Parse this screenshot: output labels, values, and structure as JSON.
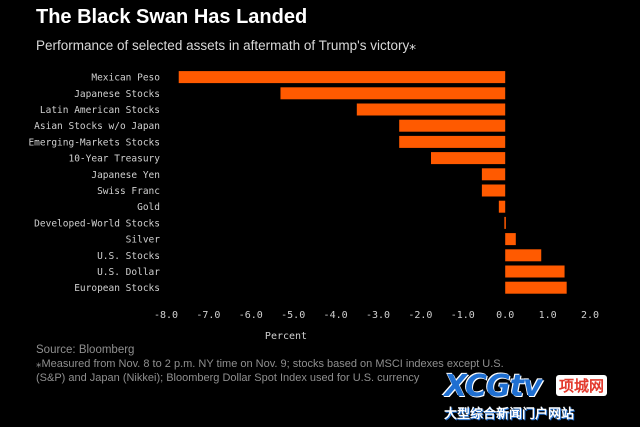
{
  "header": {
    "title": "The Black Swan Has Landed",
    "subtitle": "Performance of selected assets in aftermath of Trump's victory⁎"
  },
  "chart_data": {
    "type": "bar",
    "orientation": "horizontal",
    "xlabel": "Percent",
    "xlim": [
      -8.0,
      2.0
    ],
    "xticks": [
      "-8.0",
      "-7.0",
      "-6.0",
      "-5.0",
      "-4.0",
      "-3.0",
      "-2.0",
      "-1.0",
      "0.0",
      "1.0",
      "2.0"
    ],
    "categories": [
      "Mexican Peso",
      "Japanese Stocks",
      "Latin American Stocks",
      "Asian Stocks w/o Japan",
      "Emerging-Markets Stocks",
      "10-Year Treasury",
      "Japanese Yen",
      "Swiss Franc",
      "Gold",
      "Developed-World Stocks",
      "Silver",
      "U.S. Stocks",
      "U.S. Dollar",
      "European Stocks"
    ],
    "values": [
      -7.7,
      -5.3,
      -3.5,
      -2.5,
      -2.5,
      -1.75,
      -0.55,
      -0.55,
      -0.15,
      -0.02,
      0.25,
      0.85,
      1.4,
      1.45
    ],
    "bar_color": "#ff5a00",
    "grid": false
  },
  "footer": {
    "source": "Source: Bloomberg",
    "footnote": "⁎Measured from Nov. 8 to 2 p.m. NY time on Nov. 9; stocks based on MSCI indexes except U.S. (S&P) and Japan (Nikkei); Bloomberg Dollar Spot Index used for U.S. currency"
  },
  "watermark": {
    "logo": "XCGtv",
    "cn_badge": "项城网",
    "subtitle": "大型综合新闻门户网站"
  }
}
